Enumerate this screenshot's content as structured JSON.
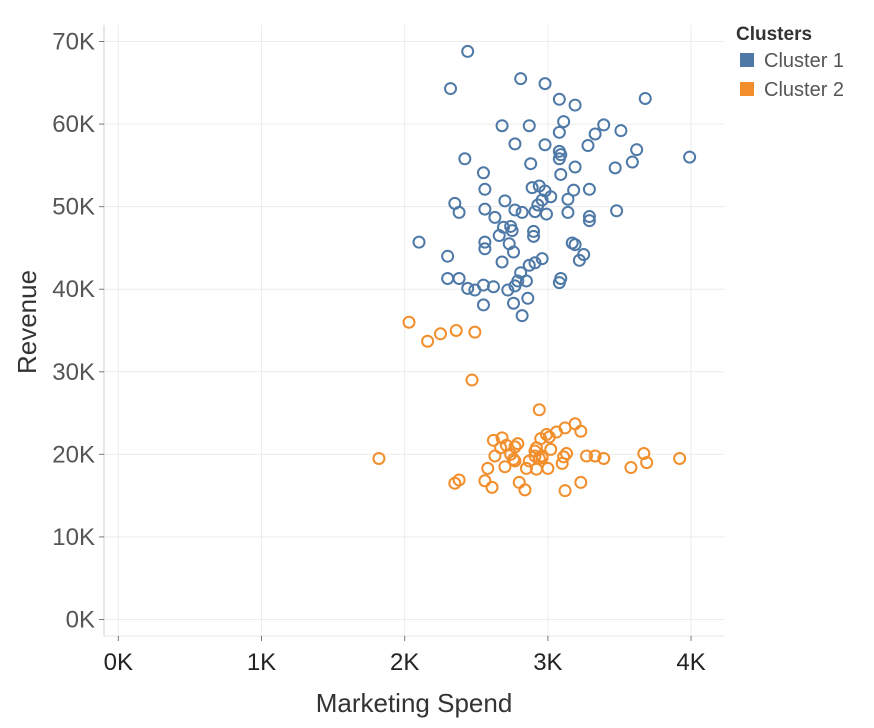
{
  "chart_data": {
    "type": "scatter",
    "title": "",
    "xlabel": "Marketing Spend",
    "ylabel": "Revenue",
    "xlim": [
      -100,
      4230
    ],
    "ylim": [
      -2000,
      72000
    ],
    "x_ticks": [
      0,
      1000,
      2000,
      3000,
      4000
    ],
    "x_tick_labels": [
      "0K",
      "1K",
      "2K",
      "3K",
      "4K"
    ],
    "y_ticks": [
      0,
      10000,
      20000,
      30000,
      40000,
      50000,
      60000,
      70000
    ],
    "y_tick_labels": [
      "0K",
      "10K",
      "20K",
      "30K",
      "40K",
      "50K",
      "60K",
      "70K"
    ],
    "grid": true,
    "legend": {
      "title": "Clusters",
      "position": "top-right"
    },
    "series": [
      {
        "name": "Cluster 1",
        "color": "#4e79a7",
        "points": [
          [
            2440,
            68800
          ],
          [
            2320,
            64300
          ],
          [
            2810,
            65500
          ],
          [
            2980,
            64900
          ],
          [
            3080,
            63000
          ],
          [
            3190,
            62300
          ],
          [
            3680,
            63100
          ],
          [
            2680,
            59800
          ],
          [
            2870,
            59800
          ],
          [
            3110,
            60300
          ],
          [
            3390,
            59900
          ],
          [
            3510,
            59200
          ],
          [
            3330,
            58800
          ],
          [
            3080,
            59000
          ],
          [
            2770,
            57600
          ],
          [
            2980,
            57500
          ],
          [
            3280,
            57400
          ],
          [
            3620,
            56900
          ],
          [
            3990,
            56000
          ],
          [
            3080,
            56700
          ],
          [
            3090,
            56300
          ],
          [
            3080,
            55800
          ],
          [
            3590,
            55400
          ],
          [
            3470,
            54700
          ],
          [
            2420,
            55800
          ],
          [
            2880,
            55200
          ],
          [
            3190,
            54800
          ],
          [
            2550,
            54100
          ],
          [
            3090,
            53900
          ],
          [
            2560,
            52100
          ],
          [
            2890,
            52300
          ],
          [
            2940,
            52500
          ],
          [
            2980,
            51900
          ],
          [
            3180,
            52000
          ],
          [
            3290,
            52100
          ],
          [
            2700,
            50700
          ],
          [
            2960,
            50800
          ],
          [
            3020,
            51200
          ],
          [
            3140,
            50900
          ],
          [
            2350,
            50400
          ],
          [
            2930,
            50200
          ],
          [
            2910,
            49400
          ],
          [
            2560,
            49700
          ],
          [
            2770,
            49600
          ],
          [
            2820,
            49300
          ],
          [
            2990,
            49100
          ],
          [
            3140,
            49300
          ],
          [
            3480,
            49500
          ],
          [
            3290,
            48800
          ],
          [
            2380,
            49300
          ],
          [
            2630,
            48700
          ],
          [
            3290,
            48300
          ],
          [
            2690,
            47500
          ],
          [
            2740,
            47600
          ],
          [
            2750,
            47100
          ],
          [
            2900,
            47000
          ],
          [
            2900,
            46400
          ],
          [
            2660,
            46500
          ],
          [
            3170,
            45600
          ],
          [
            3190,
            45400
          ],
          [
            2100,
            45700
          ],
          [
            2560,
            45700
          ],
          [
            2730,
            45500
          ],
          [
            2560,
            44900
          ],
          [
            2760,
            44500
          ],
          [
            3250,
            44200
          ],
          [
            2300,
            44000
          ],
          [
            2960,
            43700
          ],
          [
            3220,
            43500
          ],
          [
            2680,
            43300
          ],
          [
            2870,
            42900
          ],
          [
            2910,
            43200
          ],
          [
            2810,
            42000
          ],
          [
            2300,
            41300
          ],
          [
            2380,
            41300
          ],
          [
            3090,
            41300
          ],
          [
            3080,
            40800
          ],
          [
            2790,
            41000
          ],
          [
            2850,
            41000
          ],
          [
            2550,
            40500
          ],
          [
            2440,
            40100
          ],
          [
            2490,
            39900
          ],
          [
            2620,
            40300
          ],
          [
            2720,
            39900
          ],
          [
            2770,
            40400
          ],
          [
            2860,
            38900
          ],
          [
            2550,
            38100
          ],
          [
            2760,
            38300
          ],
          [
            2820,
            36800
          ]
        ]
      },
      {
        "name": "Cluster 2",
        "color": "#f28e2b",
        "points": [
          [
            2030,
            36000
          ],
          [
            2250,
            34600
          ],
          [
            2360,
            35000
          ],
          [
            2490,
            34800
          ],
          [
            2160,
            33700
          ],
          [
            2470,
            29000
          ],
          [
            2940,
            25400
          ],
          [
            3190,
            23700
          ],
          [
            3120,
            23200
          ],
          [
            3060,
            22700
          ],
          [
            3230,
            22800
          ],
          [
            2990,
            22400
          ],
          [
            2680,
            22000
          ],
          [
            2620,
            21700
          ],
          [
            2950,
            21900
          ],
          [
            3010,
            22100
          ],
          [
            2790,
            21300
          ],
          [
            2710,
            21100
          ],
          [
            2770,
            20900
          ],
          [
            2670,
            20800
          ],
          [
            2920,
            20800
          ],
          [
            2910,
            20400
          ],
          [
            3020,
            20600
          ],
          [
            2630,
            19800
          ],
          [
            2740,
            20000
          ],
          [
            2910,
            19800
          ],
          [
            2960,
            19800
          ],
          [
            3130,
            20100
          ],
          [
            3110,
            19700
          ],
          [
            3270,
            19800
          ],
          [
            3330,
            19800
          ],
          [
            3390,
            19500
          ],
          [
            3670,
            20100
          ],
          [
            3920,
            19500
          ],
          [
            1820,
            19500
          ],
          [
            2760,
            19400
          ],
          [
            2770,
            19200
          ],
          [
            2870,
            19200
          ],
          [
            2940,
            19500
          ],
          [
            2960,
            19600
          ],
          [
            2580,
            18300
          ],
          [
            2700,
            18500
          ],
          [
            2850,
            18300
          ],
          [
            2920,
            18200
          ],
          [
            3000,
            18300
          ],
          [
            3100,
            18900
          ],
          [
            3580,
            18400
          ],
          [
            3690,
            19000
          ],
          [
            2380,
            16900
          ],
          [
            2350,
            16500
          ],
          [
            2560,
            16800
          ],
          [
            2610,
            16000
          ],
          [
            2800,
            16600
          ],
          [
            2840,
            15700
          ],
          [
            3120,
            15600
          ],
          [
            3230,
            16600
          ]
        ]
      }
    ]
  }
}
